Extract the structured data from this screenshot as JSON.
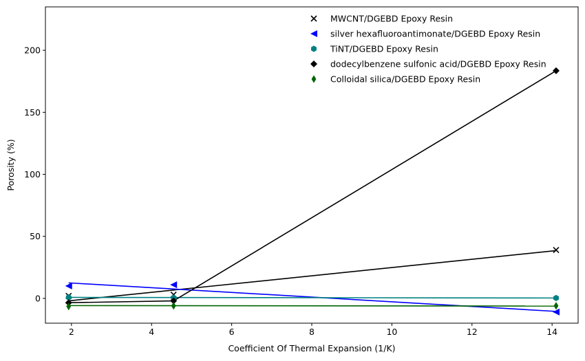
{
  "chart_data": {
    "type": "scatter",
    "xlabel": "Coefficient Of Thermal Expansion (1/K)",
    "ylabel": "Porosity (%)",
    "xlim": [
      1.35,
      14.65
    ],
    "ylim": [
      -20,
      235
    ],
    "xticks": [
      2,
      4,
      6,
      8,
      10,
      12,
      14
    ],
    "yticks": [
      0,
      50,
      100,
      150,
      200
    ],
    "grid": false,
    "legend_position": "top-right",
    "series": [
      {
        "name": "MWCNT/DGEBD Epoxy Resin",
        "marker": "x",
        "color": "#000000",
        "points": [
          [
            1.93,
            2.0
          ],
          [
            4.55,
            3.0
          ],
          [
            14.1,
            39.0
          ]
        ],
        "fit": [
          [
            1.93,
            -2.0
          ],
          [
            14.1,
            38.5
          ]
        ]
      },
      {
        "name": "silver hexafluoroantimonate/DGEBD Epoxy Resin",
        "marker": "triangle-left",
        "color": "#0000ff",
        "points": [
          [
            1.93,
            10.0
          ],
          [
            4.55,
            11.0
          ],
          [
            14.1,
            -11.0
          ]
        ],
        "fit": [
          [
            1.93,
            12.5
          ],
          [
            14.1,
            -10.5
          ]
        ]
      },
      {
        "name": "TiNT/DGEBD Epoxy Resin",
        "marker": "hexagon",
        "color": "#008080",
        "points": [
          [
            1.93,
            0.8
          ],
          [
            4.55,
            0.5
          ],
          [
            14.1,
            0.3
          ]
        ],
        "fit": [
          [
            1.93,
            0.8
          ],
          [
            14.1,
            0.3
          ]
        ]
      },
      {
        "name": "dodecylbenzene sulfonic acid/DGEBD Epoxy Resin",
        "marker": "diamond",
        "color": "#000000",
        "points": [
          [
            1.93,
            -3.5
          ],
          [
            4.55,
            -2.0
          ],
          [
            14.1,
            183.5
          ]
        ],
        "fit_segments": [
          [
            [
              1.93,
              -3.5
            ],
            [
              4.55,
              -2.0
            ]
          ],
          [
            [
              4.55,
              -2.0
            ],
            [
              14.1,
              183.5
            ]
          ]
        ]
      },
      {
        "name": "Colloidal silica/DGEBD Epoxy Resin",
        "marker": "thin-diamond",
        "color": "#006400",
        "points": [
          [
            1.93,
            -6.5
          ],
          [
            4.55,
            -6.0
          ],
          [
            14.1,
            -6.0
          ]
        ],
        "fit": [
          [
            1.93,
            -5.8
          ],
          [
            14.1,
            -6.2
          ]
        ]
      }
    ]
  }
}
